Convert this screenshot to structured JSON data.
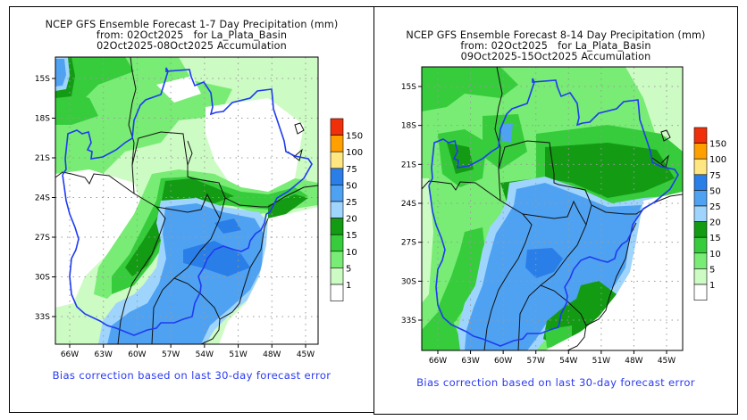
{
  "panels": [
    {
      "title_line1": "NCEP GFS Ensemble Forecast 1-7 Day Precipitation (mm)",
      "title_line2": "from: 02Oct2025   for La_Plata_Basin",
      "title_line3": "02Oct2025-08Oct2025 Accumulation",
      "footnote": "Bias correction based on last 30-day forecast error",
      "lat_ticks": [
        "15S",
        "18S",
        "21S",
        "24S",
        "27S",
        "30S",
        "33S"
      ],
      "lon_ticks": [
        "66W",
        "63W",
        "60W",
        "57W",
        "54W",
        "51W",
        "48W",
        "45W"
      ]
    },
    {
      "title_line1": "NCEP GFS Ensemble Forecast 8-14 Day Precipitation (mm)",
      "title_line2": "from: 02Oct2025   for La_Plata_Basin",
      "title_line3": "09Oct2025-15Oct2025 Accumulation",
      "footnote": "Bias correction based on last 30-day forecast error",
      "lat_ticks": [
        "15S",
        "18S",
        "21S",
        "24S",
        "27S",
        "30S",
        "33S"
      ],
      "lon_ticks": [
        "66W",
        "63W",
        "60W",
        "57W",
        "54W",
        "51W",
        "48W",
        "45W"
      ]
    }
  ],
  "legend": {
    "labels": [
      "150",
      "100",
      "75",
      "50",
      "25",
      "20",
      "15",
      "10",
      "5",
      "1"
    ],
    "colors": [
      "#f0300a",
      "#ffa000",
      "#ffe680",
      "#2a7ee8",
      "#4fa2f2",
      "#9fd4fd",
      "#149b14",
      "#36cc3c",
      "#78ec74",
      "#cdfbc4",
      "#ffffff"
    ]
  },
  "colors": {
    "basin_outline": "#1e3cf0",
    "borders": "#111111",
    "footnote": "#2b3bf0"
  }
}
